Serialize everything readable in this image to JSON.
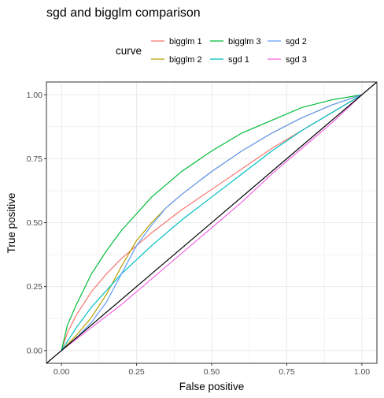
{
  "chart_data": {
    "type": "line",
    "title": "sgd and bigglm comparison",
    "xlabel": "False positive",
    "ylabel": "True positive",
    "xlim": [
      -0.05,
      1.05
    ],
    "ylim": [
      -0.05,
      1.05
    ],
    "xticks": [
      "0.00",
      "0.25",
      "0.50",
      "0.75",
      "1.00"
    ],
    "yticks": [
      "0.00",
      "0.25",
      "0.50",
      "0.75",
      "1.00"
    ],
    "grid": true,
    "legend": {
      "title": "curve",
      "placement": "top"
    },
    "reference_line": {
      "x": [
        -0.05,
        1.05
      ],
      "y": [
        -0.05,
        1.05
      ],
      "color": "#000000"
    },
    "series": [
      {
        "name": "bigglm 1",
        "color": "#F8766D",
        "x": [
          0,
          0.02,
          0.05,
          0.1,
          0.15,
          0.2,
          0.3,
          0.4,
          0.5,
          0.6,
          0.7,
          0.8,
          0.9,
          1.0
        ],
        "y": [
          0,
          0.07,
          0.14,
          0.23,
          0.3,
          0.36,
          0.46,
          0.55,
          0.63,
          0.71,
          0.79,
          0.86,
          0.93,
          1.0
        ]
      },
      {
        "name": "bigglm 2",
        "color": "#B79F00",
        "x": [
          0,
          0.05,
          0.1,
          0.15,
          0.2,
          0.25,
          0.3,
          0.35,
          0.4,
          0.5,
          0.6,
          0.7,
          0.8,
          0.9,
          1.0
        ],
        "y": [
          0,
          0.06,
          0.13,
          0.22,
          0.33,
          0.43,
          0.5,
          0.56,
          0.61,
          0.7,
          0.78,
          0.85,
          0.91,
          0.96,
          1.0
        ]
      },
      {
        "name": "bigglm 3",
        "color": "#00BA38",
        "x": [
          0,
          0.02,
          0.05,
          0.1,
          0.15,
          0.2,
          0.3,
          0.4,
          0.5,
          0.6,
          0.7,
          0.8,
          0.9,
          1.0
        ],
        "y": [
          0,
          0.1,
          0.18,
          0.3,
          0.39,
          0.47,
          0.6,
          0.7,
          0.78,
          0.85,
          0.9,
          0.95,
          0.98,
          1.0
        ]
      },
      {
        "name": "sgd 1",
        "color": "#00BFC4",
        "x": [
          0,
          0.05,
          0.1,
          0.2,
          0.3,
          0.4,
          0.5,
          0.6,
          0.7,
          0.8,
          0.9,
          1.0
        ],
        "y": [
          0,
          0.09,
          0.17,
          0.3,
          0.41,
          0.51,
          0.6,
          0.69,
          0.78,
          0.86,
          0.93,
          1.0
        ]
      },
      {
        "name": "sgd 2",
        "color": "#619CFF",
        "x": [
          0,
          0.05,
          0.1,
          0.15,
          0.2,
          0.25,
          0.3,
          0.35,
          0.4,
          0.5,
          0.6,
          0.7,
          0.8,
          0.9,
          1.0
        ],
        "y": [
          0,
          0.05,
          0.11,
          0.19,
          0.3,
          0.41,
          0.49,
          0.56,
          0.61,
          0.7,
          0.78,
          0.85,
          0.91,
          0.96,
          1.0
        ]
      },
      {
        "name": "sgd 3",
        "color": "#F564E3",
        "x": [
          0,
          0.1,
          0.2,
          0.3,
          0.4,
          0.5,
          0.6,
          0.7,
          0.8,
          0.9,
          1.0
        ],
        "y": [
          0,
          0.09,
          0.18,
          0.28,
          0.38,
          0.48,
          0.58,
          0.69,
          0.79,
          0.89,
          1.0
        ]
      }
    ]
  }
}
